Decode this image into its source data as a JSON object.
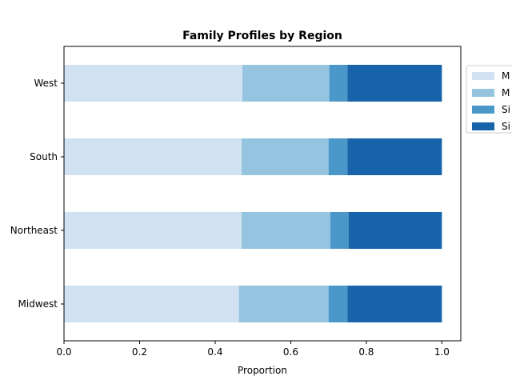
{
  "chart_data": {
    "type": "bar",
    "orientation": "horizontal",
    "stacked": true,
    "normalized": true,
    "title": "Family Profiles by Region",
    "xlabel": "Proportion",
    "ylabel": "",
    "xlim": [
      0,
      1.05
    ],
    "xticks": [
      "0.0",
      "0.2",
      "0.4",
      "0.6",
      "0.8",
      "1.0"
    ],
    "categories": [
      "Midwest",
      "Northeast",
      "South",
      "West"
    ],
    "series": [
      {
        "name": "M",
        "color": "#d0e1f2",
        "values": [
          0.463,
          0.47,
          0.47,
          0.472
        ]
      },
      {
        "name": "M",
        "color": "#94c4df",
        "values": [
          0.237,
          0.235,
          0.23,
          0.23
        ]
      },
      {
        "name": "Si",
        "color": "#4a98c9",
        "values": [
          0.05,
          0.048,
          0.05,
          0.048
        ]
      },
      {
        "name": "Si",
        "color": "#1764ab",
        "values": [
          0.25,
          0.247,
          0.25,
          0.25
        ]
      }
    ],
    "grid": false,
    "legend_position": "outside-top-right"
  }
}
